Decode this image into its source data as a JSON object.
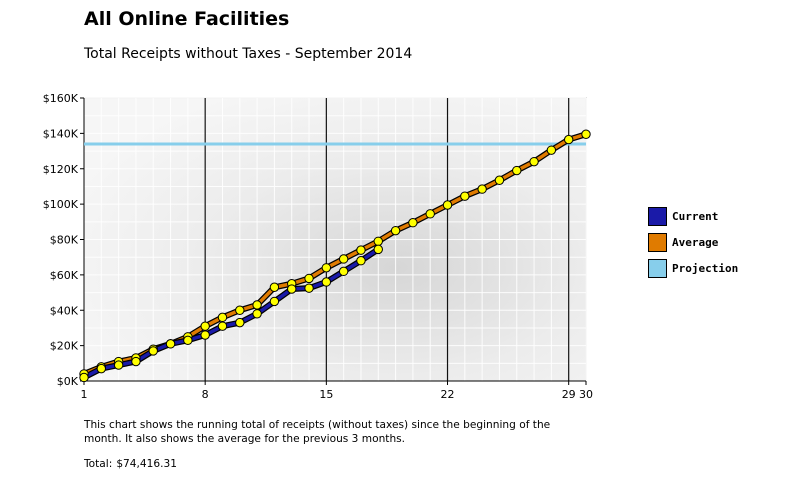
{
  "title": "All Online Facilities",
  "subtitle": "Total Receipts without Taxes - September 2014",
  "description": "This chart shows the running total of receipts (without taxes) since the beginning of the month. It also shows the average for the previous 3 months.",
  "total": {
    "label": "Total:",
    "value": "$74,416.31"
  },
  "colors": {
    "current": "#1a1aa8",
    "average": "#e07b00",
    "projection": "#87ceeb",
    "marker": "#ffff00"
  },
  "chart_data": {
    "type": "line",
    "title": "All Online Facilities",
    "subtitle": "Total Receipts without Taxes - September 2014",
    "xlabel": "",
    "ylabel": "",
    "xlim": [
      1,
      30
    ],
    "ylim": [
      0,
      160000
    ],
    "x_ticks": [
      1,
      8,
      15,
      22,
      29,
      30
    ],
    "y_ticks": [
      0,
      20000,
      40000,
      60000,
      80000,
      100000,
      120000,
      140000,
      160000
    ],
    "y_tick_labels": [
      "$0K",
      "$20K",
      "$40K",
      "$60K",
      "$80K",
      "$100K",
      "$120K",
      "$140K",
      "$160K"
    ],
    "grid": true,
    "legend": {
      "position": "right"
    },
    "series": [
      {
        "name": "Current",
        "color": "#1a1aa8",
        "x": [
          1,
          2,
          3,
          4,
          5,
          6,
          7,
          8,
          9,
          10,
          11,
          12,
          13,
          14,
          15,
          16,
          17,
          18
        ],
        "values": [
          2000,
          7000,
          9000,
          11000,
          17000,
          21000,
          23000,
          26000,
          31000,
          33000,
          38000,
          45000,
          52000,
          52500,
          56000,
          62000,
          68000,
          74416
        ]
      },
      {
        "name": "Average",
        "color": "#e07b00",
        "x": [
          1,
          2,
          3,
          4,
          5,
          6,
          7,
          8,
          9,
          10,
          11,
          12,
          13,
          14,
          15,
          16,
          17,
          18,
          19,
          20,
          21,
          22,
          23,
          24,
          25,
          26,
          27,
          28,
          29,
          30
        ],
        "values": [
          4000,
          8000,
          11000,
          13000,
          18000,
          21000,
          25000,
          31000,
          36000,
          40000,
          43000,
          53000,
          55000,
          58000,
          64000,
          69000,
          74000,
          79000,
          85000,
          89500,
          94500,
          99500,
          104500,
          108500,
          113500,
          119000,
          124000,
          130500,
          136500,
          139500
        ]
      },
      {
        "name": "Projection",
        "color": "#87ceeb",
        "constant": 134000
      }
    ]
  }
}
